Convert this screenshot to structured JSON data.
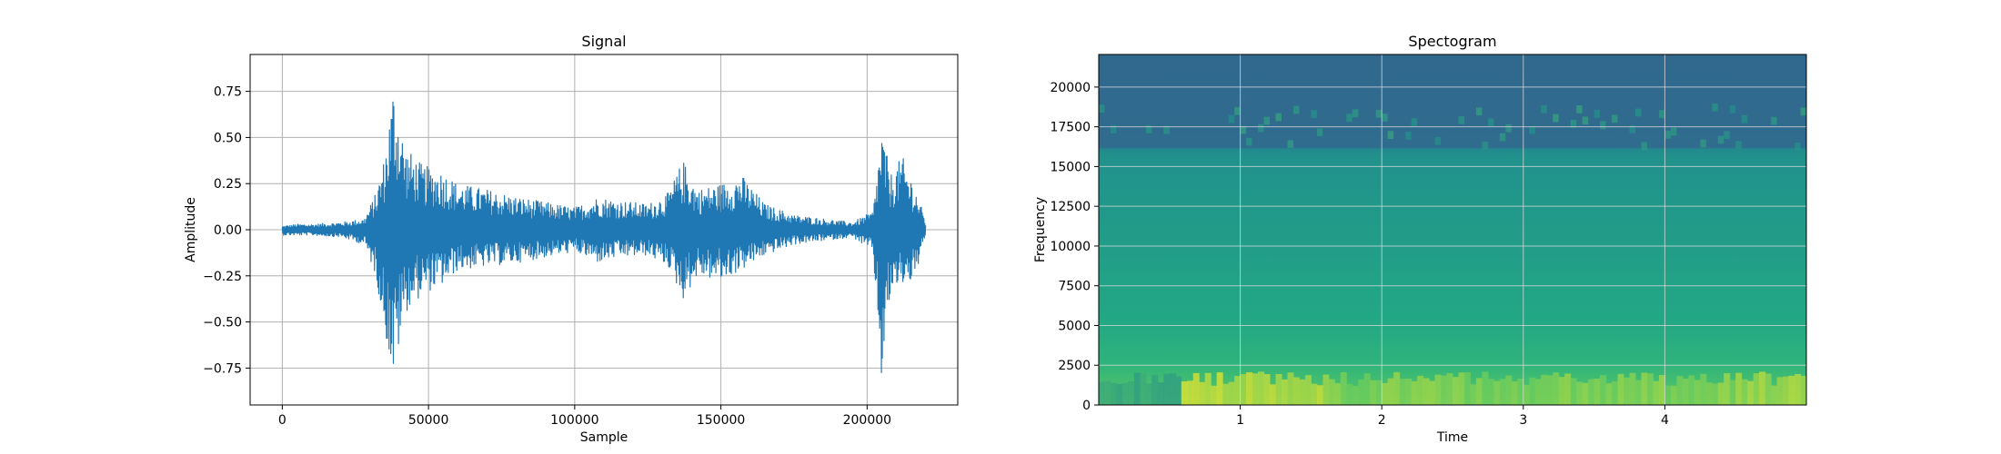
{
  "chart_data": [
    {
      "type": "line",
      "title": "Signal",
      "xlabel": "Sample",
      "ylabel": "Amplitude",
      "xlim": [
        -11000,
        231000
      ],
      "ylim": [
        -0.95,
        0.95
      ],
      "xticks": [
        0,
        50000,
        100000,
        150000,
        200000
      ],
      "xtick_labels": [
        "0",
        "50000",
        "100000",
        "150000",
        "200000"
      ],
      "yticks": [
        -0.75,
        -0.5,
        -0.25,
        0.0,
        0.25,
        0.5,
        0.75
      ],
      "ytick_labels": [
        "−0.75",
        "−0.50",
        "−0.25",
        "0.00",
        "0.25",
        "0.50",
        "0.75"
      ],
      "grid": true,
      "color": "#1f77b4",
      "envelope": {
        "sample": [
          0,
          5000,
          10000,
          20000,
          28000,
          32000,
          35000,
          38000,
          42000,
          48000,
          55000,
          60000,
          70000,
          80000,
          90000,
          100000,
          108000,
          115000,
          125000,
          132000,
          137000,
          142000,
          150000,
          157000,
          165000,
          175000,
          185000,
          195000,
          202000,
          205000,
          208000,
          212000,
          216000,
          220000
        ],
        "max": [
          0.02,
          0.03,
          0.03,
          0.04,
          0.06,
          0.2,
          0.4,
          0.8,
          0.45,
          0.35,
          0.32,
          0.25,
          0.22,
          0.18,
          0.15,
          0.12,
          0.18,
          0.16,
          0.14,
          0.2,
          0.38,
          0.22,
          0.25,
          0.3,
          0.14,
          0.08,
          0.06,
          0.04,
          0.1,
          0.55,
          0.3,
          0.4,
          0.25,
          0.05
        ],
        "min": [
          -0.03,
          -0.03,
          -0.03,
          -0.04,
          -0.08,
          -0.25,
          -0.55,
          -0.82,
          -0.45,
          -0.35,
          -0.3,
          -0.22,
          -0.2,
          -0.18,
          -0.15,
          -0.12,
          -0.18,
          -0.15,
          -0.14,
          -0.2,
          -0.38,
          -0.25,
          -0.28,
          -0.22,
          -0.14,
          -0.08,
          -0.06,
          -0.04,
          -0.12,
          -0.85,
          -0.35,
          -0.3,
          -0.28,
          -0.05
        ]
      }
    },
    {
      "type": "heatmap",
      "title": "Spectogram",
      "xlabel": "Time",
      "ylabel": "Frequency",
      "xlim": [
        0,
        5.0
      ],
      "ylim": [
        0,
        22050
      ],
      "xticks": [
        1,
        2,
        3,
        4
      ],
      "xtick_labels": [
        "1",
        "2",
        "3",
        "4"
      ],
      "yticks": [
        0,
        2500,
        5000,
        7500,
        10000,
        12500,
        15000,
        17500,
        20000
      ],
      "ytick_labels": [
        "0",
        "2500",
        "5000",
        "7500",
        "10000",
        "12500",
        "15000",
        "17500",
        "20000"
      ],
      "grid": true,
      "colormap": "viridis",
      "bands": [
        {
          "freq_from": 16000,
          "freq_to": 22050,
          "level": 0.32
        },
        {
          "freq_from": 5000,
          "freq_to": 16000,
          "level": 0.56
        },
        {
          "freq_from": 2500,
          "freq_to": 5000,
          "level": 0.62
        },
        {
          "freq_from": 0,
          "freq_to": 2500,
          "level": 0.72
        }
      ],
      "bright_regions": [
        {
          "time_from": 0.6,
          "time_to": 1.6,
          "level": 0.95
        },
        {
          "time_from": 1.6,
          "time_to": 4.5,
          "level": 0.85
        },
        {
          "time_from": 4.5,
          "time_to": 5.0,
          "level": 0.9
        }
      ]
    }
  ]
}
